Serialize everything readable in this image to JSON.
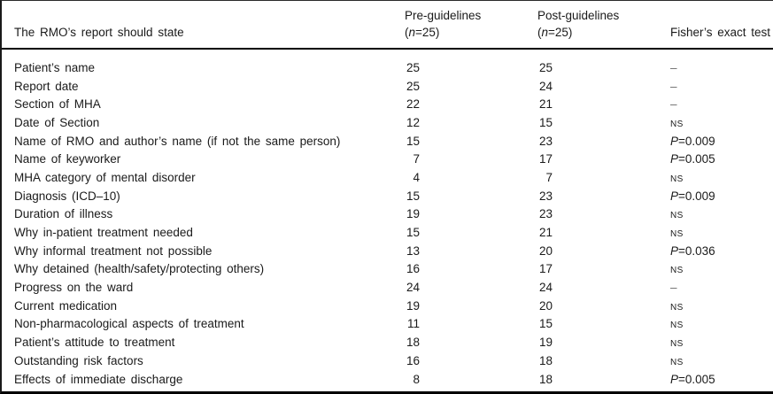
{
  "table": {
    "header": {
      "rowLabel": "The RMO’s report should state",
      "pre": {
        "title": "Pre-guidelines",
        "n_open": "(",
        "n_italic": "n",
        "n_close": "=25)"
      },
      "post": {
        "title": "Post-guidelines",
        "n_open": "(",
        "n_italic": "n",
        "n_close": "=25)"
      },
      "fisher": "Fisher’s exact test"
    },
    "rows": [
      {
        "label": "Patient’s name",
        "pre": "25",
        "post": "25",
        "fisher": "–"
      },
      {
        "label": "Report date",
        "pre": "25",
        "post": "24",
        "fisher": "–"
      },
      {
        "label": "Section of MHA",
        "pre": "22",
        "post": "21",
        "fisher": "–"
      },
      {
        "label": "Date of Section",
        "pre": "12",
        "post": "15",
        "fisher": "NS"
      },
      {
        "label": "Name of RMO and author’s name (if not the same person)",
        "pre": "15",
        "post": "23",
        "fisher": "P=0.009"
      },
      {
        "label": "Name of keyworker",
        "pre": "7",
        "post": "17",
        "fisher": "P=0.005"
      },
      {
        "label": "MHA category of mental disorder",
        "pre": "4",
        "post": "7",
        "fisher": "NS"
      },
      {
        "label": "Diagnosis (ICD–10)",
        "pre": "15",
        "post": "23",
        "fisher": "P=0.009"
      },
      {
        "label": "Duration of illness",
        "pre": "19",
        "post": "23",
        "fisher": "NS"
      },
      {
        "label": "Why in-patient treatment needed",
        "pre": "15",
        "post": "21",
        "fisher": "NS"
      },
      {
        "label": "Why informal treatment not possible",
        "pre": "13",
        "post": "20",
        "fisher": "P=0.036"
      },
      {
        "label": "Why detained (health/safety/protecting others)",
        "pre": "16",
        "post": "17",
        "fisher": "NS"
      },
      {
        "label": "Progress on the ward",
        "pre": "24",
        "post": "24",
        "fisher": "–"
      },
      {
        "label": "Current medication",
        "pre": "19",
        "post": "20",
        "fisher": "NS"
      },
      {
        "label": "Non-pharmacological aspects of treatment",
        "pre": "11",
        "post": "15",
        "fisher": "NS"
      },
      {
        "label": "Patient’s attitude to treatment",
        "pre": "18",
        "post": "19",
        "fisher": "NS"
      },
      {
        "label": "Outstanding risk factors",
        "pre": "16",
        "post": "18",
        "fisher": "NS"
      },
      {
        "label": "Effects of immediate discharge",
        "pre": "8",
        "post": "18",
        "fisher": "P=0.005"
      }
    ]
  }
}
